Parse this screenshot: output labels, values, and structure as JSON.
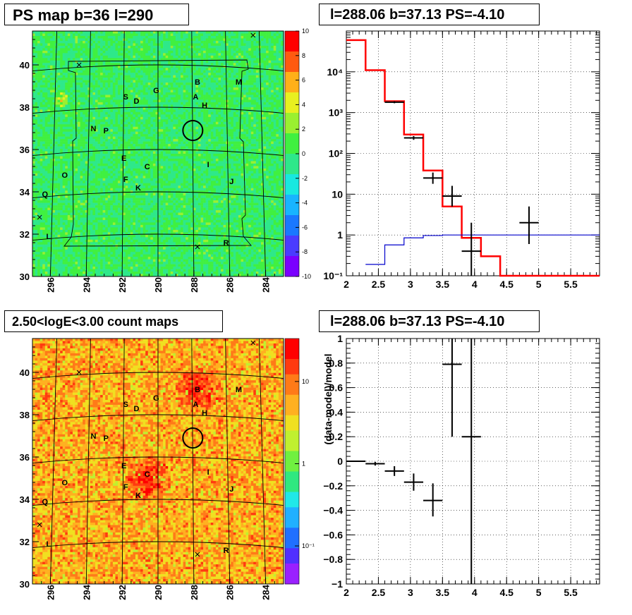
{
  "titles": {
    "ps_map": "PS map b=36 l=290",
    "spectrum": "l=288.06 b=37.13 PS=-4.10",
    "count_map": "2.50<logE<3.00 count maps",
    "residual": "l=288.06 b=37.13 PS=-4.10"
  },
  "colors": {
    "ps_map_fill": "#3ae83a",
    "count_map_fill": "#f08a2a",
    "model_total": "#ff0000",
    "model_background": "#0000cc",
    "data": "#000000"
  },
  "chart_data": [
    {
      "type": "heatmap",
      "title": "PS map b=36 l=290",
      "x_ticks": [
        "296",
        "294",
        "292",
        "290",
        "288",
        "286",
        "284"
      ],
      "y_ticks": [
        "30",
        "32",
        "34",
        "36",
        "38",
        "40"
      ],
      "xlim": [
        297,
        283
      ],
      "ylim": [
        30,
        41.6
      ],
      "colorbar": {
        "min": -10,
        "max": 10,
        "ticks": [
          "10",
          "8",
          "6",
          "4",
          "2",
          "0",
          "-2",
          "-4",
          "-6",
          "-8",
          "-10"
        ]
      },
      "labels": [
        {
          "text": "B",
          "l": 287.8,
          "b": 39.2
        },
        {
          "text": "M",
          "l": 285.5,
          "b": 39.2
        },
        {
          "text": "G",
          "l": 290.1,
          "b": 38.8
        },
        {
          "text": "A",
          "l": 287.9,
          "b": 38.5
        },
        {
          "text": "S",
          "l": 291.8,
          "b": 38.5
        },
        {
          "text": "D",
          "l": 291.2,
          "b": 38.3
        },
        {
          "text": "H",
          "l": 287.4,
          "b": 38.1
        },
        {
          "text": "N",
          "l": 293.6,
          "b": 37.0
        },
        {
          "text": "P",
          "l": 292.9,
          "b": 36.9
        },
        {
          "text": "E",
          "l": 291.9,
          "b": 35.6
        },
        {
          "text": "C",
          "l": 290.6,
          "b": 35.2
        },
        {
          "text": "I",
          "l": 287.2,
          "b": 35.3
        },
        {
          "text": "O",
          "l": 295.2,
          "b": 34.8
        },
        {
          "text": "F",
          "l": 291.8,
          "b": 34.6
        },
        {
          "text": "K",
          "l": 291.1,
          "b": 34.2
        },
        {
          "text": "J",
          "l": 285.9,
          "b": 34.5
        },
        {
          "text": "Q",
          "l": 296.3,
          "b": 33.9
        },
        {
          "text": "L",
          "l": 296.1,
          "b": 31.9
        },
        {
          "text": "R",
          "l": 286.2,
          "b": 31.6
        }
      ],
      "crosses": [
        {
          "l": 284.7,
          "b": 41.4
        },
        {
          "l": 294.4,
          "b": 40.0
        },
        {
          "l": 296.6,
          "b": 32.8
        },
        {
          "l": 287.8,
          "b": 31.4
        }
      ],
      "circle": {
        "l": 288.06,
        "b": 36.9
      }
    },
    {
      "type": "line",
      "title": "l=288.06 b=37.13 PS=-4.10",
      "xlim": [
        2,
        5.95
      ],
      "ylim": [
        0.1,
        100000
      ],
      "yscale": "log",
      "grid": true,
      "x_ticks": [
        "2",
        "2.5",
        "3",
        "3.5",
        "4",
        "4.5",
        "5",
        "5.5"
      ],
      "y_ticks": [
        "10⁻¹",
        "1",
        "10",
        "10²",
        "10³",
        "10⁴"
      ],
      "series": [
        {
          "style": "step-red",
          "edges": [
            2,
            2.3,
            2.6,
            2.9,
            3.2,
            3.5,
            3.8,
            4.1,
            4.4,
            5.95
          ],
          "values": [
            60000,
            11000,
            1900,
            290,
            38,
            5,
            0.85,
            0.3,
            0.1
          ]
        },
        {
          "style": "step-blue",
          "edges": [
            2.3,
            2.6,
            2.9,
            3.2,
            3.5,
            3.8,
            4.1,
            5.95
          ],
          "values": [
            0.19,
            0.57,
            0.85,
            0.97,
            1.0,
            1.0,
            1.0
          ]
        },
        {
          "style": "points",
          "points": [
            {
              "x": 2.75,
              "y": 1800,
              "xerr": 0.15,
              "lo": 1700,
              "hi": 1900
            },
            {
              "x": 3.05,
              "y": 240,
              "xerr": 0.15,
              "lo": 215,
              "hi": 265
            },
            {
              "x": 3.35,
              "y": 25,
              "xerr": 0.15,
              "lo": 18,
              "hi": 34
            },
            {
              "x": 3.65,
              "y": 9,
              "xerr": 0.15,
              "lo": 5,
              "hi": 16
            },
            {
              "x": 3.95,
              "y": 0.4,
              "xerr": 0.15,
              "lo": 0.1,
              "hi": 2
            },
            {
              "x": 4.85,
              "y": 2,
              "xerr": 0.15,
              "lo": 0.6,
              "hi": 5
            }
          ]
        }
      ]
    },
    {
      "type": "heatmap",
      "title": "2.50<logE<3.00 count maps",
      "x_ticks": [
        "296",
        "294",
        "292",
        "290",
        "288",
        "286",
        "284"
      ],
      "y_ticks": [
        "30",
        "32",
        "34",
        "36",
        "38",
        "40"
      ],
      "xlim": [
        297,
        283
      ],
      "ylim": [
        30,
        41.6
      ],
      "colorbar": {
        "scale": "log",
        "ticks": [
          "10",
          "1",
          "10⁻¹"
        ]
      },
      "hotspots": [
        {
          "l": 287.8,
          "b": 39.3
        },
        {
          "l": 290.6,
          "b": 35.0
        }
      ]
    },
    {
      "type": "scatter",
      "title": "l=288.06 b=37.13 PS=-4.10",
      "ylabel": "(data-model)/model",
      "xlim": [
        2,
        5.95
      ],
      "ylim": [
        -1,
        1
      ],
      "grid": true,
      "x_ticks": [
        "2",
        "2.5",
        "3",
        "3.5",
        "4",
        "4.5",
        "5",
        "5.5"
      ],
      "y_ticks": [
        "1",
        "0.8",
        "0.6",
        "0.4",
        "0.2",
        "0",
        "−0.2",
        "−0.4",
        "−0.6",
        "−0.8",
        "−1"
      ],
      "points": [
        {
          "x": 2.15,
          "y": 0.0,
          "xerr": 0.15,
          "lo": -0.005,
          "hi": 0.005
        },
        {
          "x": 2.45,
          "y": -0.02,
          "xerr": 0.15,
          "lo": -0.035,
          "hi": -0.005
        },
        {
          "x": 2.75,
          "y": -0.08,
          "xerr": 0.15,
          "lo": -0.12,
          "hi": -0.04
        },
        {
          "x": 3.05,
          "y": -0.17,
          "xerr": 0.15,
          "lo": -0.24,
          "hi": -0.1
        },
        {
          "x": 3.35,
          "y": -0.32,
          "xerr": 0.15,
          "lo": -0.45,
          "hi": -0.18
        },
        {
          "x": 3.65,
          "y": 0.79,
          "xerr": 0.15,
          "lo": 0.2,
          "hi": 1.0
        },
        {
          "x": 3.95,
          "y": 0.2,
          "xerr": 0.15,
          "lo": -1.0,
          "hi": 1.0
        }
      ]
    }
  ]
}
